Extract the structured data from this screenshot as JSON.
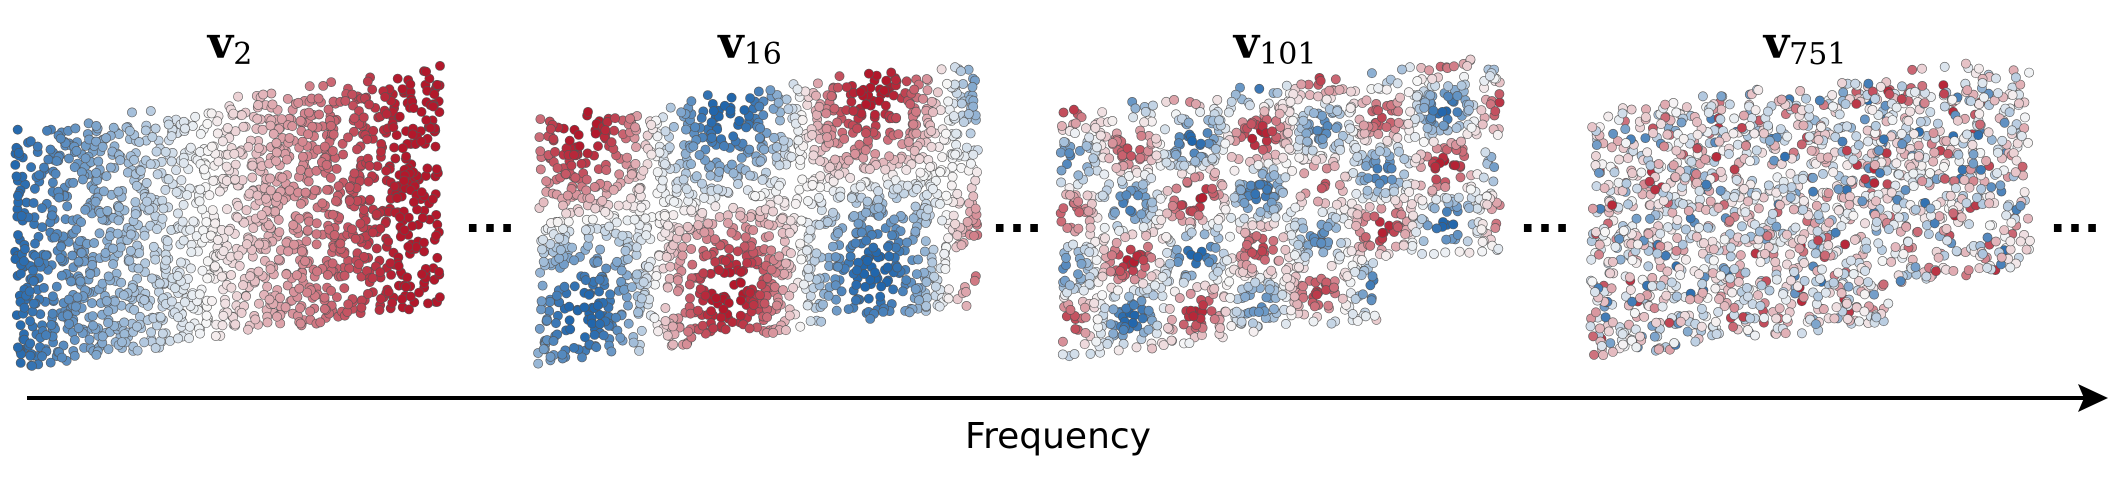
{
  "panels": [
    {
      "vector": "v",
      "index": "2",
      "frequency": 1
    },
    {
      "vector": "v",
      "index": "16",
      "frequency": 2
    },
    {
      "vector": "v",
      "index": "101",
      "frequency": 3
    },
    {
      "vector": "v",
      "index": "751",
      "frequency": 4
    }
  ],
  "ellipses": [
    "…",
    "…",
    "…",
    "…"
  ],
  "axis": {
    "label": "Frequency"
  },
  "colors": {
    "negative": "#2166ac",
    "neutral": "#f7f7f7",
    "positive": "#b2182b",
    "axis": "#000000",
    "point_edge": "#555555"
  }
}
